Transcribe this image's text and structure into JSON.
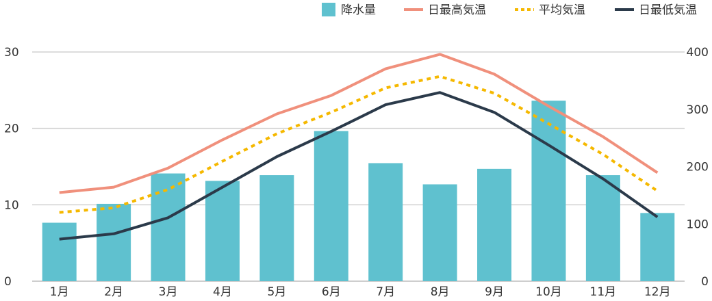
{
  "chart_data": {
    "type": "bar+line",
    "categories": [
      "1月",
      "2月",
      "3月",
      "4月",
      "5月",
      "6月",
      "7月",
      "8月",
      "9月",
      "10月",
      "11月",
      "12月"
    ],
    "bar_series": {
      "name": "降水量",
      "axis": "right",
      "color": "#5fc1cf",
      "values": [
        102,
        135,
        188,
        175,
        185,
        262,
        206,
        169,
        196,
        315,
        185,
        119
      ]
    },
    "line_series": [
      {
        "name": "日最高気温",
        "axis": "left",
        "color": "#f0907c",
        "style": "solid",
        "values": [
          11.6,
          12.3,
          14.8,
          18.5,
          21.9,
          24.3,
          27.8,
          29.7,
          27.1,
          22.9,
          18.9,
          14.2
        ]
      },
      {
        "name": "平均気温",
        "axis": "left",
        "color": "#f5b800",
        "style": "dotted",
        "values": [
          9.0,
          9.6,
          12.0,
          15.7,
          19.3,
          22.1,
          25.3,
          26.8,
          24.6,
          20.6,
          16.6,
          11.8
        ]
      },
      {
        "name": "日最低気温",
        "axis": "left",
        "color": "#2b3a4a",
        "style": "solid",
        "values": [
          5.5,
          6.2,
          8.3,
          12.3,
          16.3,
          19.6,
          23.1,
          24.7,
          22.1,
          17.8,
          13.4,
          8.4
        ]
      }
    ],
    "y_left": {
      "min": 0,
      "max": 30,
      "ticks": [
        0,
        10,
        20,
        30
      ]
    },
    "y_right": {
      "min": 0,
      "max": 400,
      "ticks": [
        0,
        100,
        200,
        300,
        400
      ]
    },
    "grid": true,
    "legend_position": "top-right"
  }
}
